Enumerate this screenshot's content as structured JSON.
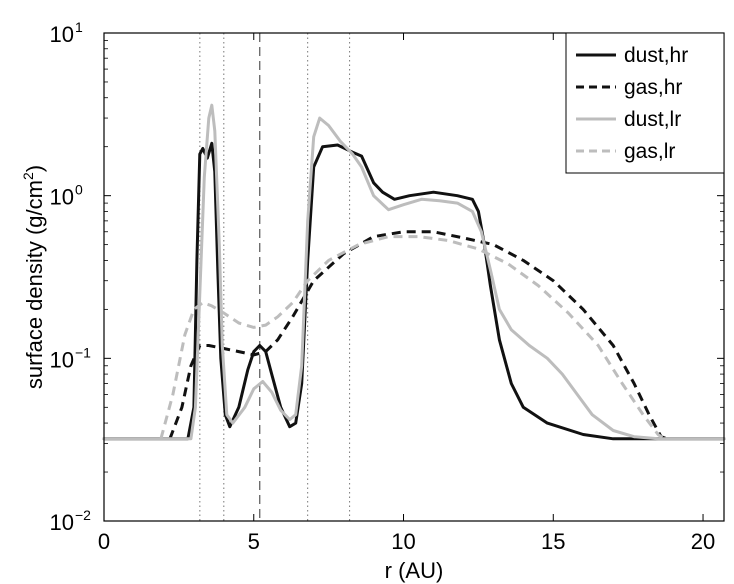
{
  "chart_data": {
    "type": "line",
    "title": "",
    "xlabel": "r (AU)",
    "ylabel_main": "surface density (g/cm",
    "ylabel_sup": "2",
    "ylabel_tail": ")",
    "xlim": [
      0,
      20.7
    ],
    "ylim": [
      0.01,
      10
    ],
    "yscale": "log",
    "grid": false,
    "legend_position": "top-right",
    "x_ticks": [
      {
        "value": 0,
        "label": "0"
      },
      {
        "value": 5,
        "label": "5"
      },
      {
        "value": 10,
        "label": "10"
      },
      {
        "value": 15,
        "label": "15"
      },
      {
        "value": 20,
        "label": "20"
      }
    ],
    "y_ticks": [
      {
        "value": 0.01,
        "base": "10",
        "exp": "−2"
      },
      {
        "value": 0.1,
        "base": "10",
        "exp": "−1"
      },
      {
        "value": 1,
        "base": "10",
        "exp": "0"
      },
      {
        "value": 10,
        "base": "10",
        "exp": "1"
      }
    ],
    "vlines": [
      {
        "x": 3.2,
        "style": "dotted"
      },
      {
        "x": 4.0,
        "style": "dotted"
      },
      {
        "x": 5.2,
        "style": "dashed"
      },
      {
        "x": 6.8,
        "style": "dotted"
      },
      {
        "x": 8.2,
        "style": "dotted"
      }
    ],
    "series": [
      {
        "name": "dust,hr",
        "color": "#111111",
        "dash": "solid",
        "points": [
          [
            0,
            0.032
          ],
          [
            2.8,
            0.032
          ],
          [
            3.0,
            0.05
          ],
          [
            3.1,
            0.4
          ],
          [
            3.2,
            1.8
          ],
          [
            3.3,
            1.95
          ],
          [
            3.45,
            1.7
          ],
          [
            3.6,
            2.1
          ],
          [
            3.7,
            1.4
          ],
          [
            3.8,
            0.35
          ],
          [
            3.9,
            0.1
          ],
          [
            4.05,
            0.045
          ],
          [
            4.2,
            0.038
          ],
          [
            4.5,
            0.05
          ],
          [
            4.8,
            0.085
          ],
          [
            5.0,
            0.11
          ],
          [
            5.2,
            0.12
          ],
          [
            5.4,
            0.11
          ],
          [
            5.6,
            0.08
          ],
          [
            5.9,
            0.05
          ],
          [
            6.2,
            0.038
          ],
          [
            6.4,
            0.04
          ],
          [
            6.6,
            0.07
          ],
          [
            6.8,
            0.4
          ],
          [
            7.0,
            1.5
          ],
          [
            7.3,
            2.0
          ],
          [
            7.8,
            2.05
          ],
          [
            8.3,
            1.85
          ],
          [
            8.6,
            1.75
          ],
          [
            9.0,
            1.2
          ],
          [
            9.3,
            1.05
          ],
          [
            9.7,
            0.95
          ],
          [
            10.2,
            1.0
          ],
          [
            11.0,
            1.05
          ],
          [
            11.8,
            1.0
          ],
          [
            12.3,
            0.95
          ],
          [
            12.5,
            0.8
          ],
          [
            12.7,
            0.5
          ],
          [
            12.9,
            0.28
          ],
          [
            13.2,
            0.13
          ],
          [
            13.6,
            0.07
          ],
          [
            14.0,
            0.05
          ],
          [
            14.8,
            0.04
          ],
          [
            16,
            0.034
          ],
          [
            17,
            0.032
          ],
          [
            20.7,
            0.032
          ]
        ]
      },
      {
        "name": "gas,hr",
        "color": "#111111",
        "dash": "dashed",
        "points": [
          [
            2.2,
            0.032
          ],
          [
            2.6,
            0.05
          ],
          [
            2.9,
            0.09
          ],
          [
            3.2,
            0.12
          ],
          [
            3.5,
            0.12
          ],
          [
            4.0,
            0.115
          ],
          [
            4.5,
            0.11
          ],
          [
            5.0,
            0.105
          ],
          [
            5.4,
            0.11
          ],
          [
            5.8,
            0.13
          ],
          [
            6.3,
            0.18
          ],
          [
            7.0,
            0.3
          ],
          [
            8.0,
            0.44
          ],
          [
            9.0,
            0.56
          ],
          [
            10.0,
            0.6
          ],
          [
            11.0,
            0.6
          ],
          [
            12.0,
            0.55
          ],
          [
            13.0,
            0.5
          ],
          [
            14.0,
            0.4
          ],
          [
            15.0,
            0.3
          ],
          [
            16.0,
            0.2
          ],
          [
            17.0,
            0.12
          ],
          [
            17.7,
            0.07
          ],
          [
            18.2,
            0.045
          ],
          [
            18.6,
            0.033
          ],
          [
            18.8,
            0.032
          ]
        ]
      },
      {
        "name": "dust,lr",
        "color": "#bdbdbd",
        "dash": "solid",
        "points": [
          [
            0,
            0.032
          ],
          [
            2.9,
            0.032
          ],
          [
            3.05,
            0.05
          ],
          [
            3.2,
            0.25
          ],
          [
            3.35,
            1.3
          ],
          [
            3.5,
            3.0
          ],
          [
            3.6,
            3.6
          ],
          [
            3.7,
            2.5
          ],
          [
            3.85,
            0.5
          ],
          [
            3.95,
            0.12
          ],
          [
            4.1,
            0.045
          ],
          [
            4.3,
            0.04
          ],
          [
            4.7,
            0.05
          ],
          [
            5.0,
            0.065
          ],
          [
            5.3,
            0.072
          ],
          [
            5.6,
            0.062
          ],
          [
            5.9,
            0.048
          ],
          [
            6.2,
            0.042
          ],
          [
            6.4,
            0.045
          ],
          [
            6.6,
            0.09
          ],
          [
            6.8,
            0.7
          ],
          [
            7.0,
            2.3
          ],
          [
            7.2,
            3.0
          ],
          [
            7.5,
            2.7
          ],
          [
            7.9,
            2.15
          ],
          [
            8.3,
            1.8
          ],
          [
            8.6,
            1.5
          ],
          [
            9.0,
            1.0
          ],
          [
            9.5,
            0.82
          ],
          [
            10.0,
            0.88
          ],
          [
            10.6,
            0.95
          ],
          [
            11.2,
            0.93
          ],
          [
            11.8,
            0.9
          ],
          [
            12.3,
            0.8
          ],
          [
            12.6,
            0.6
          ],
          [
            12.9,
            0.35
          ],
          [
            13.2,
            0.2
          ],
          [
            13.6,
            0.15
          ],
          [
            14.2,
            0.12
          ],
          [
            14.8,
            0.1
          ],
          [
            15.3,
            0.08
          ],
          [
            15.8,
            0.06
          ],
          [
            16.3,
            0.045
          ],
          [
            17.0,
            0.036
          ],
          [
            17.7,
            0.033
          ],
          [
            18.5,
            0.032
          ],
          [
            20.7,
            0.032
          ]
        ]
      },
      {
        "name": "gas,lr",
        "color": "#bdbdbd",
        "dash": "dashed",
        "points": [
          [
            1.9,
            0.032
          ],
          [
            2.3,
            0.06
          ],
          [
            2.7,
            0.14
          ],
          [
            3.0,
            0.2
          ],
          [
            3.3,
            0.22
          ],
          [
            3.6,
            0.21
          ],
          [
            4.0,
            0.19
          ],
          [
            4.5,
            0.165
          ],
          [
            5.0,
            0.155
          ],
          [
            5.4,
            0.16
          ],
          [
            5.8,
            0.18
          ],
          [
            6.3,
            0.22
          ],
          [
            6.8,
            0.3
          ],
          [
            7.5,
            0.4
          ],
          [
            8.5,
            0.5
          ],
          [
            9.5,
            0.56
          ],
          [
            10.5,
            0.56
          ],
          [
            11.5,
            0.53
          ],
          [
            12.5,
            0.47
          ],
          [
            13.5,
            0.38
          ],
          [
            14.5,
            0.28
          ],
          [
            15.5,
            0.19
          ],
          [
            16.5,
            0.12
          ],
          [
            17.3,
            0.07
          ],
          [
            18.0,
            0.045
          ],
          [
            18.5,
            0.034
          ],
          [
            18.7,
            0.032
          ]
        ]
      }
    ]
  }
}
